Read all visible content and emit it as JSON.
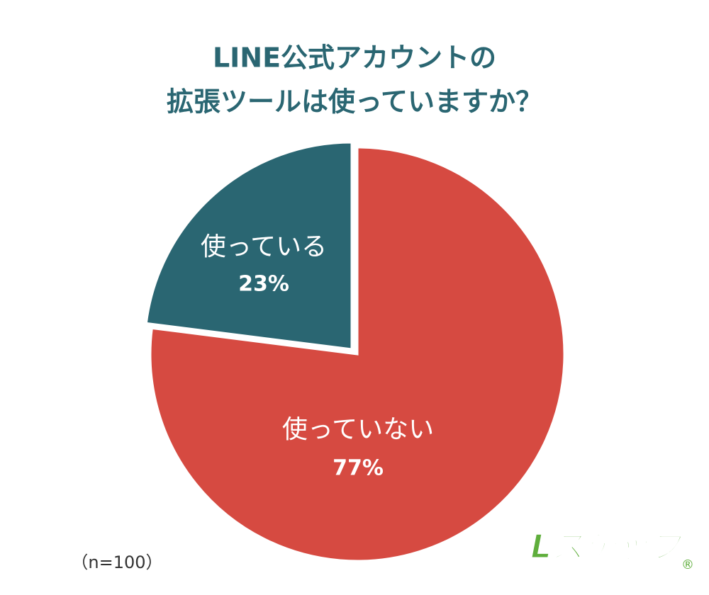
{
  "chart_data": {
    "type": "pie",
    "title": [
      "LINE公式アカウントの",
      "拡張ツールは使っていますか？"
    ],
    "categories": [
      "使っている",
      "使っていない"
    ],
    "values": [
      23,
      77
    ],
    "value_labels": [
      "23%",
      "77%"
    ],
    "colors": [
      "#2a6672",
      "#d64a41"
    ],
    "note": "（n=100）",
    "logo": "Lステップ",
    "logo_mark": "®"
  }
}
